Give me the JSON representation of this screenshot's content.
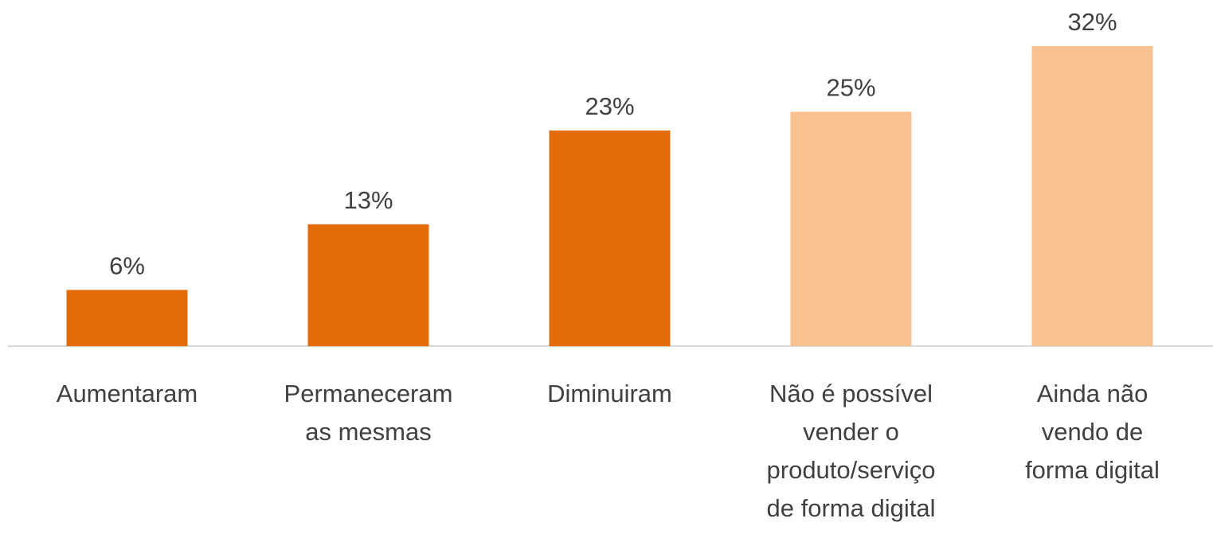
{
  "chart_data": {
    "type": "bar",
    "categories": [
      "Aumentaram",
      "Permaneceram as mesmas",
      "Diminuiram",
      "Não é possível vender o produto/serviço de forma digital",
      "Ainda não vendo de forma digital"
    ],
    "values": [
      6,
      13,
      23,
      25,
      32
    ],
    "value_labels": [
      "6%",
      "13%",
      "23%",
      "25%",
      "32%"
    ],
    "colors": [
      "#e36c0a",
      "#e36c0a",
      "#e36c0a",
      "#f9c090",
      "#f9c090"
    ]
  }
}
